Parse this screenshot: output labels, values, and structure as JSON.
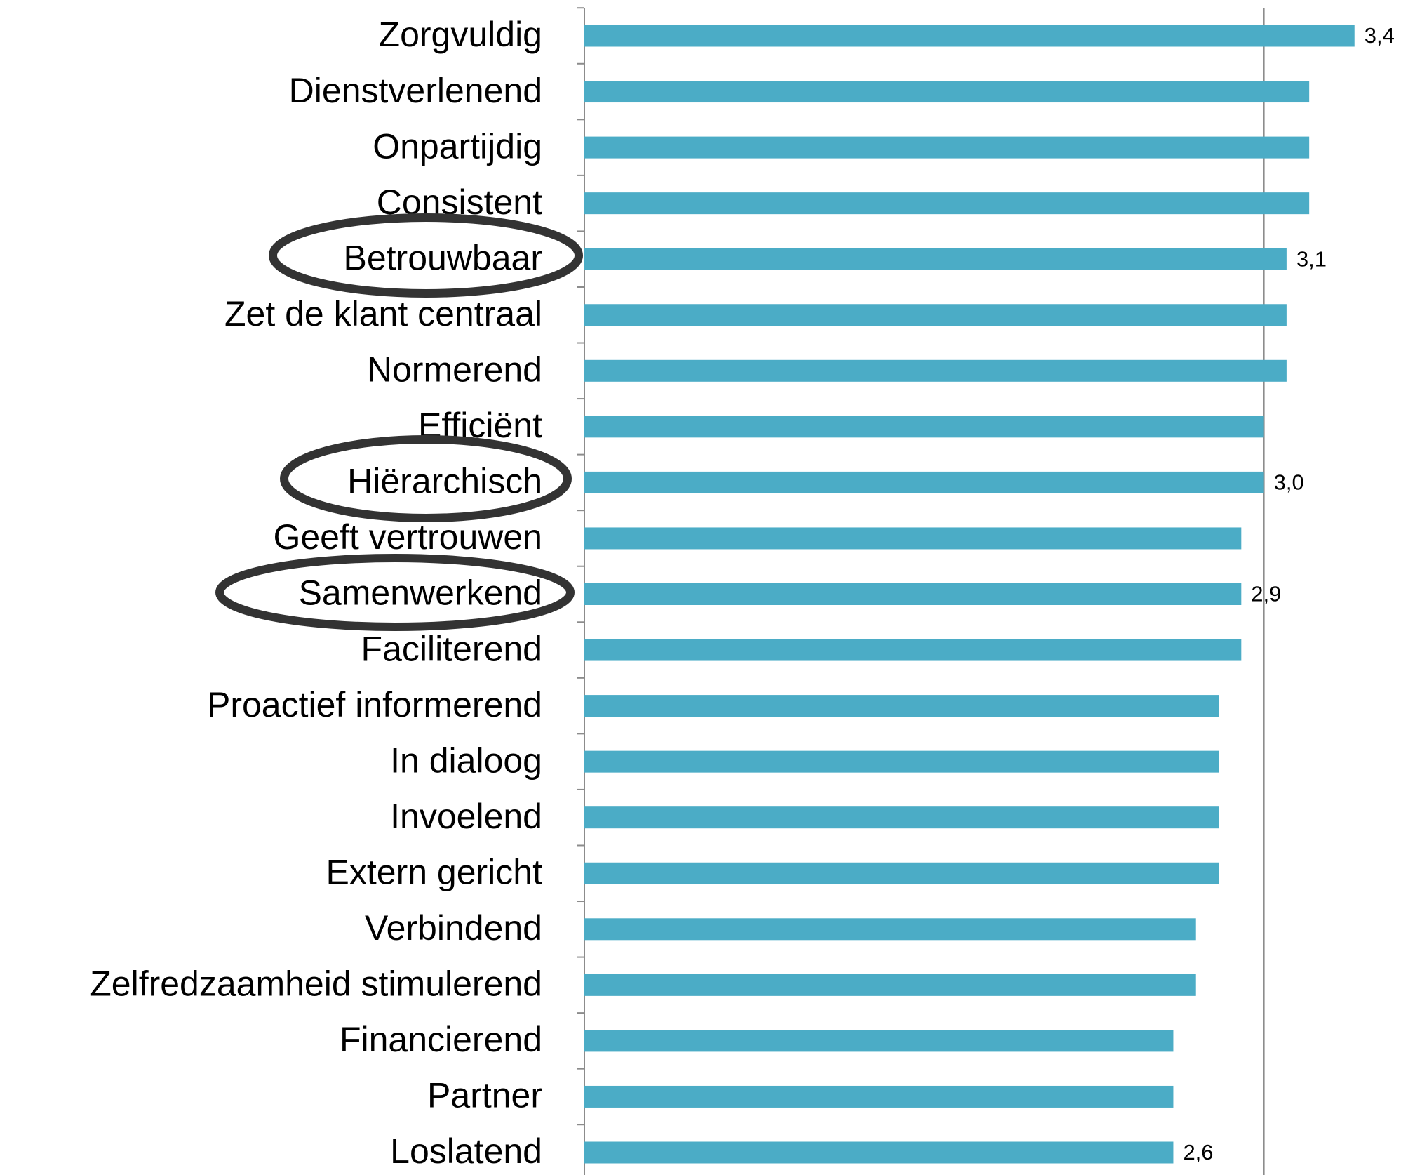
{
  "chart_data": {
    "type": "bar",
    "orientation": "horizontal",
    "categories": [
      "Zorgvuldig",
      "Dienstverlenend",
      "Onpartijdig",
      "Consistent",
      "Betrouwbaar",
      "Zet de klant centraal",
      "Normerend",
      "Efficiënt",
      "Hiërarchisch",
      "Geeft vertrouwen",
      "Samenwerkend",
      "Faciliterend",
      "Proactief informerend",
      "In dialoog",
      "Invoelend",
      "Extern gericht",
      "Verbindend",
      "Zelfredzaamheid stimulerend",
      "Financierend",
      "Partner",
      "Loslatend"
    ],
    "values": [
      3.4,
      3.2,
      3.2,
      3.2,
      3.1,
      3.1,
      3.1,
      3.0,
      3.0,
      2.9,
      2.9,
      2.9,
      2.8,
      2.8,
      2.8,
      2.8,
      2.7,
      2.7,
      2.6,
      2.6,
      2.6
    ],
    "value_labels": [
      "3,4",
      null,
      null,
      null,
      "3,1",
      null,
      null,
      null,
      "3,0",
      null,
      "2,9",
      null,
      null,
      null,
      null,
      null,
      null,
      null,
      null,
      null,
      "2,6"
    ],
    "color": "#4bacc6",
    "xlim": [
      0,
      3.63
    ],
    "xticks": [
      3
    ],
    "grid": true
  }
}
